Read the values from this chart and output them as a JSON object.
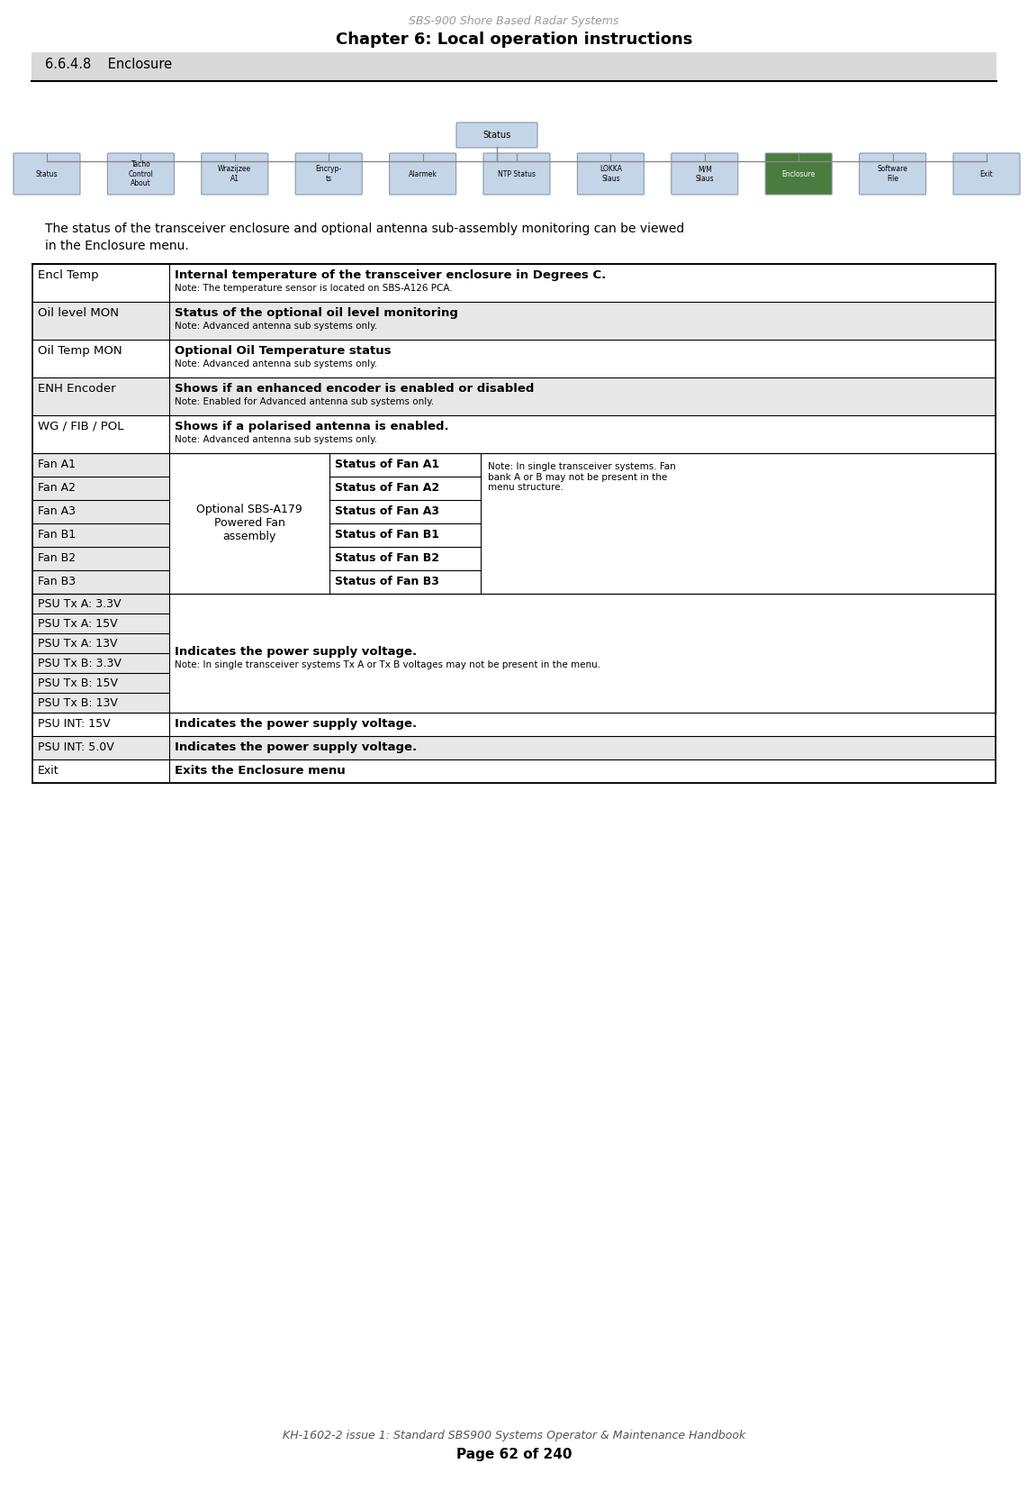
{
  "page_title_italic": "SBS-900 Shore Based Radar Systems",
  "page_title_bold": "Chapter 6: Local operation instructions",
  "section_heading": "6.6.4.8    Enclosure",
  "footer_italic": "KH-1602-2 issue 1: Standard SBS900 Systems Operator & Maintenance Handbook",
  "footer_bold": "Page 62 of 240",
  "child_labels": [
    "Status",
    "Tacho\nControl\nAbout",
    "Wrazijzee\nA1",
    "Encryp-\nts",
    "Alarmek",
    "NTP Status",
    "LOKKA\nSlaus",
    "M/M\nSlaus",
    "Enclosure",
    "Software\nFile",
    "Exit"
  ],
  "simple_rows": [
    {
      "col1": "Encl Temp",
      "col2_bold": "Internal temperature of the transceiver enclosure in Degrees C.",
      "col2_note": "Note: The temperature sensor is located on SBS-A126 PCA.",
      "shaded": false
    },
    {
      "col1": "Oil level MON",
      "col2_bold": "Status of the optional oil level monitoring",
      "col2_note": "Note: Advanced antenna sub systems only.",
      "shaded": true
    },
    {
      "col1": "Oil Temp MON",
      "col2_bold": "Optional Oil Temperature status",
      "col2_note": "Note: Advanced antenna sub systems only.",
      "shaded": false
    },
    {
      "col1": "ENH Encoder",
      "col2_bold": "Shows if an enhanced encoder is enabled or disabled",
      "col2_note": "Note: Enabled for Advanced antenna sub systems only.",
      "shaded": true
    },
    {
      "col1": "WG / FIB / POL",
      "col2_bold": "Shows if a polarised antenna is enabled.",
      "col2_note": "Note: Advanced antenna sub systems only.",
      "shaded": false
    }
  ],
  "fan_labels": [
    "Fan A1",
    "Fan A2",
    "Fan A3",
    "Fan B1",
    "Fan B2",
    "Fan B3"
  ],
  "fan_statuses": [
    "Status of Fan A1",
    "Status of Fan A2",
    "Status of Fan A3",
    "Status of Fan B1",
    "Status of Fan B2",
    "Status of Fan B3"
  ],
  "fan_middle": "Optional SBS-A179\nPowered Fan\nassembly",
  "fan_note": "Note: In single transceiver systems. Fan\nbank A or B may not be present in the\nmenu structure.",
  "psu_rows": [
    "PSU Tx A: 3.3V",
    "PSU Tx A: 15V",
    "PSU Tx A: 13V",
    "PSU Tx B: 3.3V",
    "PSU Tx B: 15V",
    "PSU Tx B: 13V"
  ],
  "psu_note_bold": "Indicates the power supply voltage.",
  "psu_note_small": "Note: In single transceiver systems Tx A or Tx B voltages may not be present in the menu.",
  "final_rows": [
    {
      "col1": "PSU INT: 15V",
      "col2_bold": "Indicates the power supply voltage.",
      "shaded": false
    },
    {
      "col1": "PSU INT: 5.0V",
      "col2_bold": "Indicates the power supply voltage.",
      "shaded": true
    },
    {
      "col1": "Exit",
      "col2_bold": "Exits the Enclosure menu",
      "shaded": false
    }
  ],
  "bg_color": "#ffffff",
  "section_bg": "#d9d9d9",
  "table_shaded": "#e8e8e8",
  "highlight_green": "#4a7c3f",
  "box_blue": "#c5d5e8",
  "box_border": "#8899aa"
}
